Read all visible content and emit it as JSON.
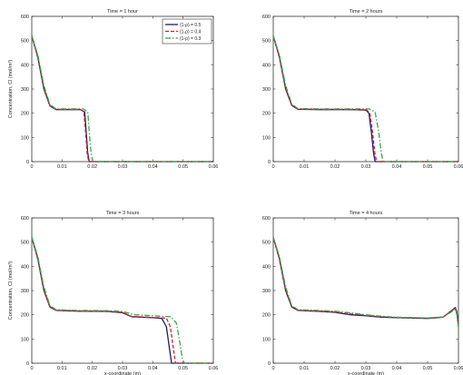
{
  "chart_data": [
    {
      "type": "line",
      "title": "Time = 1 hour",
      "xlabel": "",
      "ylabel": "Concentration, Cl (mol/m³)",
      "xlim": [
        0,
        0.06
      ],
      "ylim": [
        0,
        600
      ],
      "xticks": [
        "0",
        "0.01",
        "0.02",
        "0.03",
        "0.04",
        "0.05",
        "0.06"
      ],
      "yticks": [
        "0",
        "100",
        "200",
        "300",
        "400",
        "500",
        "600"
      ],
      "legend": "top-right",
      "series": [
        {
          "name": "(1-ρ) = 0.5",
          "values": [
            [
              0,
              520
            ],
            [
              0.002,
              430
            ],
            [
              0.004,
              300
            ],
            [
              0.006,
              230
            ],
            [
              0.008,
              215
            ],
            [
              0.012,
              215
            ],
            [
              0.016,
              215
            ],
            [
              0.0175,
              205
            ],
            [
              0.018,
              120
            ],
            [
              0.0185,
              35
            ],
            [
              0.019,
              0
            ],
            [
              0.06,
              0
            ]
          ]
        },
        {
          "name": "(1-ρ) = 0.4",
          "values": [
            [
              0,
              520
            ],
            [
              0.002,
              435
            ],
            [
              0.004,
              305
            ],
            [
              0.006,
              232
            ],
            [
              0.008,
              216
            ],
            [
              0.012,
              216
            ],
            [
              0.016,
              216
            ],
            [
              0.0172,
              205
            ],
            [
              0.0178,
              120
            ],
            [
              0.0183,
              35
            ],
            [
              0.0188,
              0
            ],
            [
              0.06,
              0
            ]
          ]
        },
        {
          "name": "(1-ρ) = 0.3",
          "values": [
            [
              0,
              520
            ],
            [
              0.002,
              440
            ],
            [
              0.004,
              315
            ],
            [
              0.006,
              236
            ],
            [
              0.008,
              218
            ],
            [
              0.012,
              218
            ],
            [
              0.017,
              218
            ],
            [
              0.0185,
              205
            ],
            [
              0.019,
              120
            ],
            [
              0.0196,
              35
            ],
            [
              0.0202,
              0
            ],
            [
              0.06,
              0
            ]
          ]
        }
      ]
    },
    {
      "type": "line",
      "title": "Time = 2 hours",
      "xlabel": "",
      "ylabel": "",
      "xlim": [
        0,
        0.06
      ],
      "ylim": [
        0,
        600
      ],
      "xticks": [
        "0",
        "0.01",
        "0.02",
        "0.03",
        "0.04",
        "0.05",
        "0.06"
      ],
      "yticks": [
        "0",
        "100",
        "200",
        "300",
        "400",
        "500",
        "600"
      ],
      "series": [
        {
          "name": "(1-ρ) = 0.5",
          "values": [
            [
              0,
              520
            ],
            [
              0.002,
              430
            ],
            [
              0.004,
              300
            ],
            [
              0.006,
              232
            ],
            [
              0.008,
              216
            ],
            [
              0.015,
              215
            ],
            [
              0.025,
              215
            ],
            [
              0.03,
              213
            ],
            [
              0.031,
              200
            ],
            [
              0.0318,
              120
            ],
            [
              0.0325,
              35
            ],
            [
              0.033,
              0
            ],
            [
              0.06,
              0
            ]
          ]
        },
        {
          "name": "(1-ρ) = 0.4",
          "values": [
            [
              0,
              520
            ],
            [
              0.002,
              435
            ],
            [
              0.004,
              305
            ],
            [
              0.006,
              234
            ],
            [
              0.008,
              217
            ],
            [
              0.015,
              216
            ],
            [
              0.025,
              216
            ],
            [
              0.0303,
              213
            ],
            [
              0.0313,
              200
            ],
            [
              0.0322,
              120
            ],
            [
              0.0329,
              35
            ],
            [
              0.0335,
              0
            ],
            [
              0.06,
              0
            ]
          ]
        },
        {
          "name": "(1-ρ) = 0.3",
          "values": [
            [
              0,
              520
            ],
            [
              0.002,
              440
            ],
            [
              0.004,
              315
            ],
            [
              0.006,
              238
            ],
            [
              0.008,
              219
            ],
            [
              0.015,
              218
            ],
            [
              0.025,
              218
            ],
            [
              0.031,
              218
            ],
            [
              0.033,
              205
            ],
            [
              0.0342,
              120
            ],
            [
              0.035,
              35
            ],
            [
              0.0356,
              0
            ],
            [
              0.06,
              0
            ]
          ]
        }
      ]
    },
    {
      "type": "line",
      "title": "Time = 3 hours",
      "xlabel": "x-coordinate (m)",
      "ylabel": "Concentration, Cl (mol/m³)",
      "xlim": [
        0,
        0.06
      ],
      "ylim": [
        0,
        600
      ],
      "xticks": [
        "0",
        "0.01",
        "0.02",
        "0.03",
        "0.04",
        "0.05",
        "0.06"
      ],
      "yticks": [
        "0",
        "100",
        "200",
        "300",
        "400",
        "500",
        "600"
      ],
      "series": [
        {
          "name": "(1-ρ) = 0.5",
          "values": [
            [
              0,
              520
            ],
            [
              0.002,
              430
            ],
            [
              0.004,
              300
            ],
            [
              0.006,
              232
            ],
            [
              0.008,
              218
            ],
            [
              0.015,
              215
            ],
            [
              0.025,
              214
            ],
            [
              0.03,
              208
            ],
            [
              0.033,
              192
            ],
            [
              0.04,
              188
            ],
            [
              0.043,
              185
            ],
            [
              0.0445,
              150
            ],
            [
              0.0455,
              60
            ],
            [
              0.0462,
              0
            ],
            [
              0.06,
              0
            ]
          ]
        },
        {
          "name": "(1-ρ) = 0.4",
          "values": [
            [
              0,
              520
            ],
            [
              0.002,
              435
            ],
            [
              0.004,
              305
            ],
            [
              0.006,
              234
            ],
            [
              0.008,
              219
            ],
            [
              0.015,
              216
            ],
            [
              0.025,
              215
            ],
            [
              0.03,
              210
            ],
            [
              0.033,
              193
            ],
            [
              0.04,
              189
            ],
            [
              0.0445,
              186
            ],
            [
              0.0458,
              150
            ],
            [
              0.0468,
              60
            ],
            [
              0.0475,
              0
            ],
            [
              0.06,
              0
            ]
          ]
        },
        {
          "name": "(1-ρ) = 0.3",
          "values": [
            [
              0,
              520
            ],
            [
              0.002,
              440
            ],
            [
              0.004,
              315
            ],
            [
              0.006,
              238
            ],
            [
              0.008,
              221
            ],
            [
              0.015,
              218
            ],
            [
              0.025,
              217
            ],
            [
              0.03,
              214
            ],
            [
              0.034,
              200
            ],
            [
              0.04,
              196
            ],
            [
              0.046,
              192
            ],
            [
              0.0478,
              165
            ],
            [
              0.049,
              80
            ],
            [
              0.0498,
              15
            ],
            [
              0.0505,
              0
            ],
            [
              0.06,
              0
            ]
          ]
        }
      ]
    },
    {
      "type": "line",
      "title": "Time = 4 hours",
      "xlabel": "x-coordinate (m)",
      "ylabel": "",
      "xlim": [
        0,
        0.06
      ],
      "ylim": [
        0,
        600
      ],
      "xticks": [
        "0",
        "0.01",
        "0.02",
        "0.03",
        "0.04",
        "0.05",
        "0.06"
      ],
      "yticks": [
        "0",
        "100",
        "200",
        "300",
        "400",
        "500",
        "600"
      ],
      "series": [
        {
          "name": "(1-ρ) = 0.5",
          "values": [
            [
              0,
              520
            ],
            [
              0.002,
              430
            ],
            [
              0.004,
              300
            ],
            [
              0.006,
              232
            ],
            [
              0.008,
              218
            ],
            [
              0.015,
              214
            ],
            [
              0.02,
              210
            ],
            [
              0.025,
              200
            ],
            [
              0.03,
              196
            ],
            [
              0.035,
              190
            ],
            [
              0.04,
              188
            ],
            [
              0.05,
              185
            ],
            [
              0.055,
              190
            ],
            [
              0.058,
              220
            ],
            [
              0.059,
              230
            ],
            [
              0.0595,
              210
            ],
            [
              0.06,
              160
            ]
          ]
        },
        {
          "name": "(1-ρ) = 0.4",
          "values": [
            [
              0,
              520
            ],
            [
              0.002,
              435
            ],
            [
              0.004,
              305
            ],
            [
              0.006,
              234
            ],
            [
              0.008,
              219
            ],
            [
              0.015,
              215
            ],
            [
              0.02,
              212
            ],
            [
              0.025,
              204
            ],
            [
              0.03,
              198
            ],
            [
              0.035,
              192
            ],
            [
              0.04,
              189
            ],
            [
              0.05,
              186
            ],
            [
              0.055,
              190
            ],
            [
              0.058,
              218
            ],
            [
              0.059,
              228
            ],
            [
              0.0595,
              205
            ],
            [
              0.06,
              150
            ]
          ]
        },
        {
          "name": "(1-ρ) = 0.3",
          "values": [
            [
              0,
              520
            ],
            [
              0.002,
              440
            ],
            [
              0.004,
              315
            ],
            [
              0.006,
              238
            ],
            [
              0.008,
              221
            ],
            [
              0.015,
              218
            ],
            [
              0.02,
              215
            ],
            [
              0.025,
              208
            ],
            [
              0.03,
              200
            ],
            [
              0.035,
              194
            ],
            [
              0.04,
              190
            ],
            [
              0.05,
              187
            ],
            [
              0.055,
              191
            ],
            [
              0.058,
              214
            ],
            [
              0.059,
              222
            ],
            [
              0.0595,
              200
            ],
            [
              0.06,
              145
            ]
          ]
        }
      ]
    }
  ],
  "series_styles": [
    {
      "color": "#1f1b6e",
      "dash": ""
    },
    {
      "color": "#c8262c",
      "dash": "4,2"
    },
    {
      "color": "#3aa84a",
      "dash": "6,2,1.5,2"
    }
  ]
}
